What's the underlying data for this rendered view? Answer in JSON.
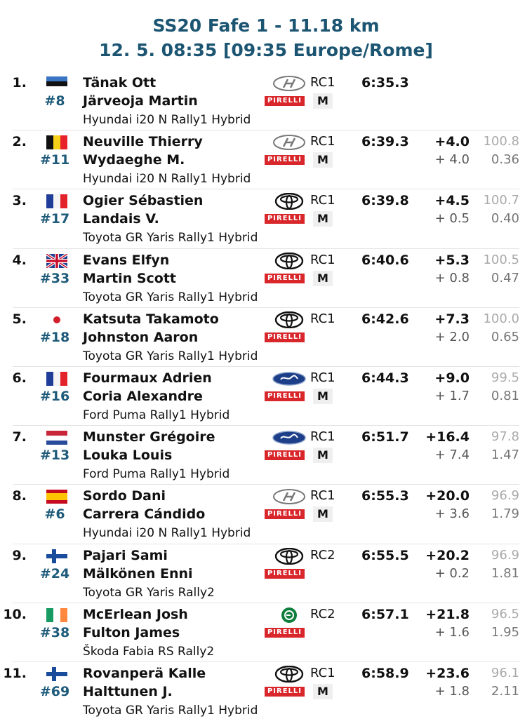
{
  "header": {
    "title": "SS20 Fafe 1 - 11.18 km",
    "subtitle": "12. 5. 08:35 [09:35 Europe/Rome]"
  },
  "tyre_logo": "PIRELLI",
  "rows": [
    {
      "pos": "1.",
      "number": "#8",
      "driver": "Tänak Ott",
      "codriver": "Järveoja Martin",
      "car": "Hyundai i20 N Rally1 Hybrid",
      "class": "RC1",
      "tyre": "M",
      "time": "6:35.3",
      "gap": null,
      "diff": null,
      "pct": null,
      "pct_diff": null
    },
    {
      "pos": "2.",
      "number": "#11",
      "driver": "Neuville Thierry",
      "codriver": "Wydaeghe M.",
      "car": "Hyundai i20 N Rally1 Hybrid",
      "class": "RC1",
      "tyre": "M",
      "time": "6:39.3",
      "gap": "+4.0",
      "diff": "+ 4.0",
      "pct": "100.8",
      "pct_diff": "0.36"
    },
    {
      "pos": "3.",
      "number": "#17",
      "driver": "Ogier Sébastien",
      "codriver": "Landais V.",
      "car": "Toyota GR Yaris Rally1 Hybrid",
      "class": "RC1",
      "tyre": "M",
      "time": "6:39.8",
      "gap": "+4.5",
      "diff": "+ 0.5",
      "pct": "100.7",
      "pct_diff": "0.40"
    },
    {
      "pos": "4.",
      "number": "#33",
      "driver": "Evans Elfyn",
      "codriver": "Martin Scott",
      "car": "Toyota GR Yaris Rally1 Hybrid",
      "class": "RC1",
      "tyre": "M",
      "time": "6:40.6",
      "gap": "+5.3",
      "diff": "+ 0.8",
      "pct": "100.5",
      "pct_diff": "0.47"
    },
    {
      "pos": "5.",
      "number": "#18",
      "driver": "Katsuta Takamoto",
      "codriver": "Johnston Aaron",
      "car": "Toyota GR Yaris Rally1 Hybrid",
      "class": "RC1",
      "tyre": null,
      "time": "6:42.6",
      "gap": "+7.3",
      "diff": "+ 2.0",
      "pct": "100.0",
      "pct_diff": "0.65"
    },
    {
      "pos": "6.",
      "number": "#16",
      "driver": "Fourmaux Adrien",
      "codriver": "Coria Alexandre",
      "car": "Ford Puma Rally1 Hybrid",
      "class": "RC1",
      "tyre": "M",
      "time": "6:44.3",
      "gap": "+9.0",
      "diff": "+ 1.7",
      "pct": "99.5",
      "pct_diff": "0.81"
    },
    {
      "pos": "7.",
      "number": "#13",
      "driver": "Munster Grégoire",
      "codriver": "Louka Louis",
      "car": "Ford Puma Rally1 Hybrid",
      "class": "RC1",
      "tyre": "M",
      "time": "6:51.7",
      "gap": "+16.4",
      "diff": "+ 7.4",
      "pct": "97.8",
      "pct_diff": "1.47"
    },
    {
      "pos": "8.",
      "number": "#6",
      "driver": "Sordo Dani",
      "codriver": "Carrera Cándido",
      "car": "Hyundai i20 N Rally1 Hybrid",
      "class": "RC1",
      "tyre": "M",
      "time": "6:55.3",
      "gap": "+20.0",
      "diff": "+ 3.6",
      "pct": "96.9",
      "pct_diff": "1.79"
    },
    {
      "pos": "9.",
      "number": "#24",
      "driver": "Pajari Sami",
      "codriver": "Mälkönen Enni",
      "car": "Toyota GR Yaris Rally2",
      "class": "RC2",
      "tyre": null,
      "time": "6:55.5",
      "gap": "+20.2",
      "diff": "+ 0.2",
      "pct": "96.9",
      "pct_diff": "1.81"
    },
    {
      "pos": "10.",
      "number": "#38",
      "driver": "McErlean Josh",
      "codriver": "Fulton James",
      "car": "Škoda Fabia RS Rally2",
      "class": "RC2",
      "tyre": null,
      "time": "6:57.1",
      "gap": "+21.8",
      "diff": "+ 1.6",
      "pct": "96.5",
      "pct_diff": "1.95"
    },
    {
      "pos": "11.",
      "number": "#69",
      "driver": "Rovanperä Kalle",
      "codriver": "Halttunen J.",
      "car": "Toyota GR Yaris Rally1 Hybrid",
      "class": "RC1",
      "tyre": "M",
      "time": "6:58.9",
      "gap": "+23.6",
      "diff": "+ 1.8",
      "pct": "96.1",
      "pct_diff": "2.11"
    }
  ]
}
